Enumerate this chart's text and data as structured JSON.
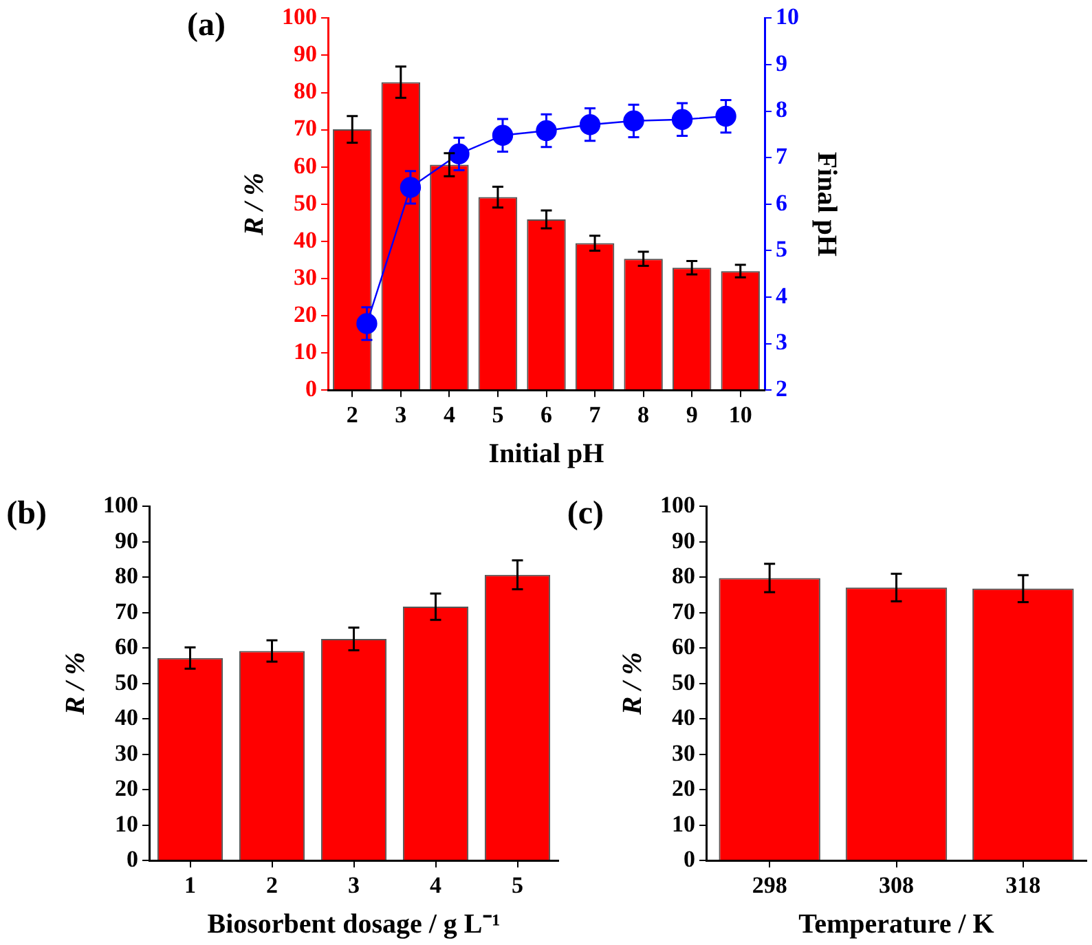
{
  "chart_data": [
    {
      "type": "bar",
      "title": "(a)",
      "xlabel": "Initial pH",
      "ylabel": "R / %",
      "y2label": "Final pH",
      "x": [
        2,
        3,
        4,
        5,
        6,
        7,
        8,
        9,
        10
      ],
      "xlim": [
        1.5,
        10.5
      ],
      "xticks": [
        2,
        3,
        4,
        5,
        6,
        7,
        8,
        9,
        10
      ],
      "ylim": [
        0,
        100
      ],
      "yticks": [
        0,
        10,
        20,
        30,
        40,
        50,
        60,
        70,
        80,
        90,
        100
      ],
      "y2lim": [
        2,
        10
      ],
      "y2ticks": [
        2,
        3,
        4,
        5,
        6,
        7,
        8,
        9,
        10
      ],
      "marker": "circle",
      "line_style": "solid",
      "series": [
        {
          "type": "bar",
          "color": "#ff0000",
          "values": [
            70.1,
            82.8,
            60.6,
            51.9,
            45.9,
            39.5,
            35.3,
            32.9,
            32
          ],
          "errors": [
            3.6,
            4.2,
            3.1,
            2.8,
            2.4,
            2,
            1.9,
            1.8,
            1.7
          ]
        },
        {
          "type": "line",
          "axis": "y2",
          "color": "#0000ff",
          "x": [
            2.3,
            3.2,
            4.2,
            5.1,
            6.0,
            6.9,
            7.8,
            8.8,
            9.7
          ],
          "values": [
            3.43,
            6.36,
            7.08,
            7.48,
            7.58,
            7.71,
            7.79,
            7.82,
            7.89
          ],
          "errors": [
            0.35,
            0.35,
            0.35,
            0.35,
            0.35,
            0.35,
            0.35,
            0.35,
            0.35
          ]
        }
      ]
    },
    {
      "type": "bar",
      "title": "(b)",
      "xlabel": "Biosorbent dosage / g L⁻¹",
      "ylabel": "R / %",
      "categories": [
        "1",
        "2",
        "3",
        "4",
        "5"
      ],
      "ylim": [
        0,
        100
      ],
      "yticks": [
        0,
        10,
        20,
        30,
        40,
        50,
        60,
        70,
        80,
        90,
        100
      ],
      "series": [
        {
          "color": "#ff0000",
          "values": [
            57.2,
            59.2,
            62.6,
            71.7,
            80.7
          ],
          "errors": [
            3,
            3,
            3.2,
            3.7,
            4.1
          ]
        }
      ]
    },
    {
      "type": "bar",
      "title": "(c)",
      "xlabel": "Temperature / K",
      "ylabel": "R / %",
      "categories": [
        "298",
        "308",
        "318"
      ],
      "ylim": [
        0,
        100
      ],
      "yticks": [
        0,
        10,
        20,
        30,
        40,
        50,
        60,
        70,
        80,
        90,
        100
      ],
      "series": [
        {
          "color": "#ff0000",
          "values": [
            79.8,
            77.1,
            76.8
          ],
          "errors": [
            4,
            3.9,
            3.8
          ]
        }
      ]
    }
  ]
}
